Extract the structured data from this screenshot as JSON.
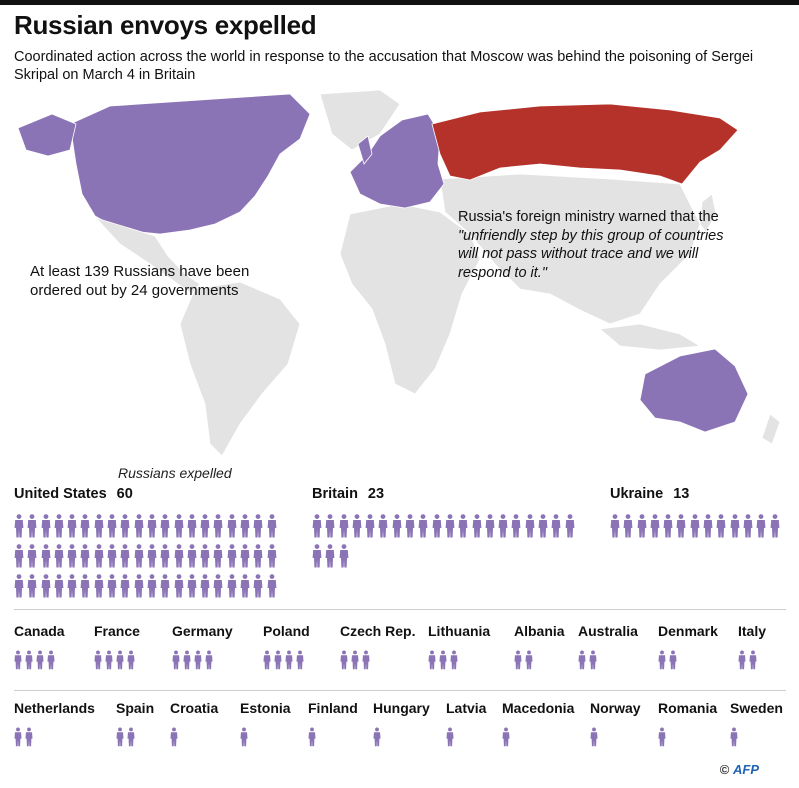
{
  "title": "Russian envoys expelled",
  "subtitle": "Coordinated action across the world in response to the accusation that Moscow was behind the poisoning of Sergei Skripal on March 4 in Britain",
  "callouts": {
    "left": "At least 139 Russians have been ordered out by 24 governments",
    "right_intro": "Russia's foreign ministry warned that the ",
    "right_quote": "\"unfriendly step by this group of countries will not pass without trace and we will respond to it.\""
  },
  "legend_caption": "Russians expelled",
  "colors": {
    "expelling": "#8b74b6",
    "russia": "#b5322a",
    "land": "#e3e3e3",
    "figure": "#8b74b6"
  },
  "watermark": "AFP",
  "credit": {
    "symbol": "©",
    "agency": "AFP"
  },
  "countries_large": [
    {
      "name": "United States",
      "count": 60
    },
    {
      "name": "Britain",
      "count": 23
    },
    {
      "name": "Ukraine",
      "count": 13
    }
  ],
  "countries_row1": [
    {
      "name": "Canada",
      "count": 4
    },
    {
      "name": "France",
      "count": 4
    },
    {
      "name": "Germany",
      "count": 4
    },
    {
      "name": "Poland",
      "count": 4
    },
    {
      "name": "Czech Rep.",
      "count": 3
    },
    {
      "name": "Lithuania",
      "count": 3
    },
    {
      "name": "Albania",
      "count": 2
    },
    {
      "name": "Australia",
      "count": 2
    },
    {
      "name": "Denmark",
      "count": 2
    },
    {
      "name": "Italy",
      "count": 2
    }
  ],
  "countries_row2": [
    {
      "name": "Netherlands",
      "count": 2
    },
    {
      "name": "Spain",
      "count": 2
    },
    {
      "name": "Croatia",
      "count": 1
    },
    {
      "name": "Estonia",
      "count": 1
    },
    {
      "name": "Finland",
      "count": 1
    },
    {
      "name": "Hungary",
      "count": 1
    },
    {
      "name": "Latvia",
      "count": 1
    },
    {
      "name": "Macedonia",
      "count": 1
    },
    {
      "name": "Norway",
      "count": 1
    },
    {
      "name": "Romania",
      "count": 1
    },
    {
      "name": "Sweden",
      "count": 1
    }
  ]
}
